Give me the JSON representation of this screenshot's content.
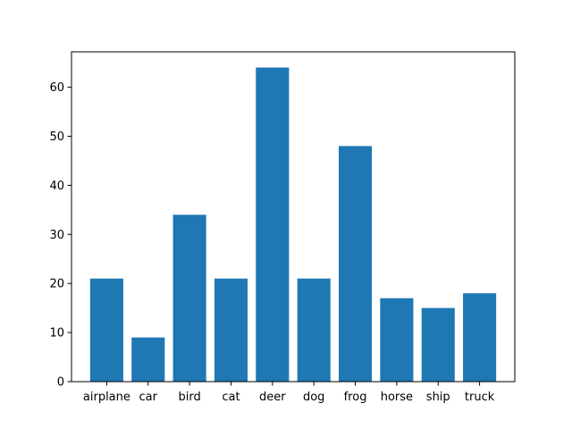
{
  "chart_data": {
    "type": "bar",
    "title": "",
    "xlabel": "",
    "ylabel": "",
    "categories": [
      "airplane",
      "car",
      "bird",
      "cat",
      "deer",
      "dog",
      "frog",
      "horse",
      "ship",
      "truck"
    ],
    "values": [
      21,
      9,
      34,
      21,
      64,
      21,
      48,
      17,
      15,
      18
    ],
    "ylim": [
      0,
      67.2
    ],
    "yticks": [
      0,
      10,
      20,
      30,
      40,
      50,
      60
    ],
    "bar_color": "#1f77b4",
    "grid": false,
    "legend": "none"
  }
}
